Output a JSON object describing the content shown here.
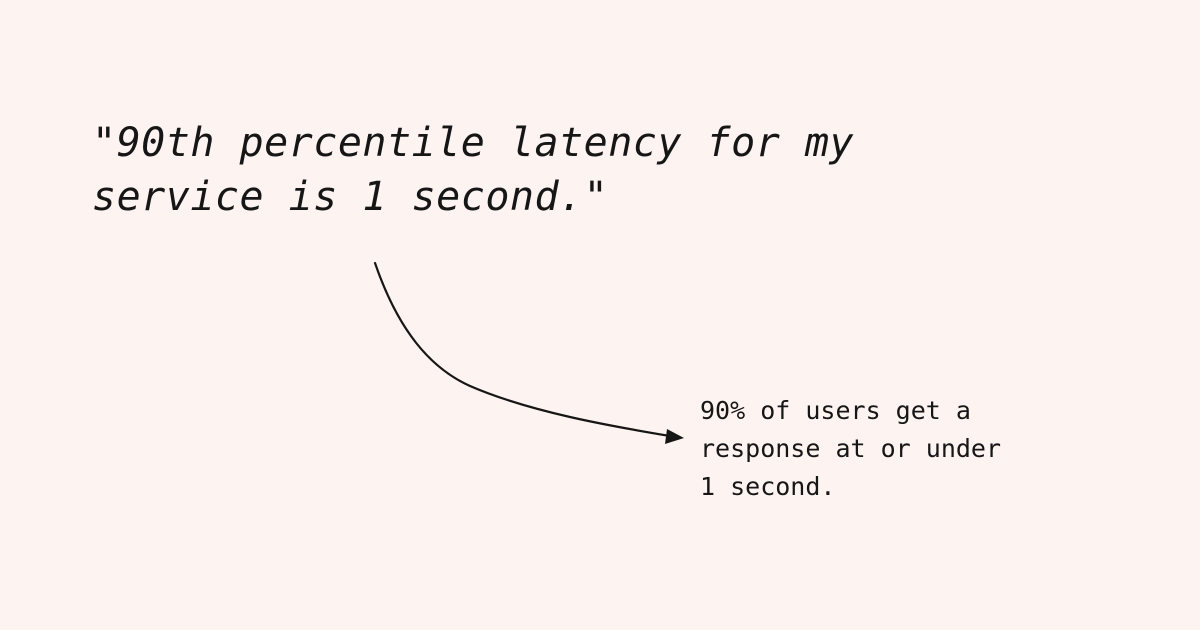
{
  "quote": {
    "line1": "\"90th percentile latency for my",
    "line2": "service is 1 second.\""
  },
  "annotation": {
    "line1": "90% of users get a",
    "line2": "response at or under",
    "line3": "1 second."
  },
  "colors": {
    "background": "#fdf3f1",
    "text": "#161616",
    "arrow": "#161616"
  }
}
